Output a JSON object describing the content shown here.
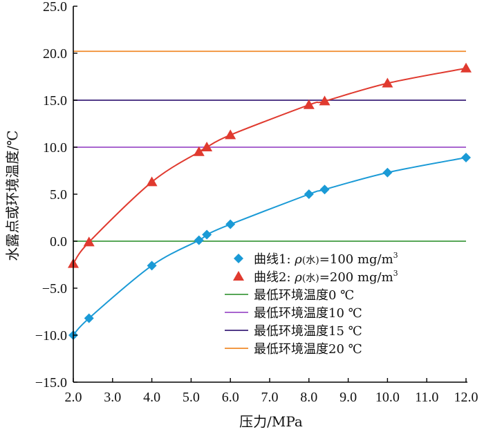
{
  "chart_data": {
    "type": "line",
    "xlabel": "压力/MPa",
    "ylabel": "水露点或环境温度/℃",
    "xlim": [
      2.0,
      12.0
    ],
    "ylim": [
      -15.0,
      25.0
    ],
    "xticks": [
      "2.0",
      "3.0",
      "4.0",
      "5.0",
      "6.0",
      "7.0",
      "8.0",
      "9.0",
      "10.0",
      "11.0",
      "12.0"
    ],
    "yticks": [
      "25.0",
      "20.0",
      "15.0",
      "10.0",
      "5.0",
      "0.0",
      "−5.0",
      "−10.0",
      "−15.0"
    ],
    "series": [
      {
        "name_prefix": "曲线1: ",
        "name_rho": "ρ",
        "name_water": "(水)",
        "name_value": "=100 mg/m",
        "name_sup": "3",
        "marker": "diamond",
        "color": "#1a9ad6",
        "x": [
          2.0,
          2.4,
          4.0,
          5.2,
          5.4,
          6.0,
          8.0,
          8.4,
          10.0,
          12.0
        ],
        "y": [
          -10.0,
          -8.2,
          -2.6,
          0.1,
          0.7,
          1.8,
          5.0,
          5.5,
          7.3,
          8.9
        ]
      },
      {
        "name_prefix": "曲线2: ",
        "name_rho": "ρ",
        "name_water": "(水)",
        "name_value": "=200 mg/m",
        "name_sup": "3",
        "marker": "triangle",
        "color": "#e03a2f",
        "x": [
          2.0,
          2.4,
          4.0,
          5.2,
          5.4,
          6.0,
          8.0,
          8.4,
          10.0,
          12.0
        ],
        "y": [
          -2.4,
          -0.1,
          6.3,
          9.5,
          10.0,
          11.3,
          14.5,
          14.9,
          16.8,
          18.4
        ]
      }
    ],
    "reference_lines": [
      {
        "name": "最低环境温度0 ℃",
        "y": 0,
        "color": "#3f9a3f"
      },
      {
        "name": "最低环境温度10 ℃",
        "y": 10,
        "color": "#9b4fc8"
      },
      {
        "name": "最低环境温度15 ℃",
        "y": 15,
        "color": "#3a1f78"
      },
      {
        "name": "最低环境温度20 ℃",
        "y": 20.2,
        "color": "#f08a2a"
      }
    ],
    "grid": false,
    "legend_position": "bottom-right"
  }
}
